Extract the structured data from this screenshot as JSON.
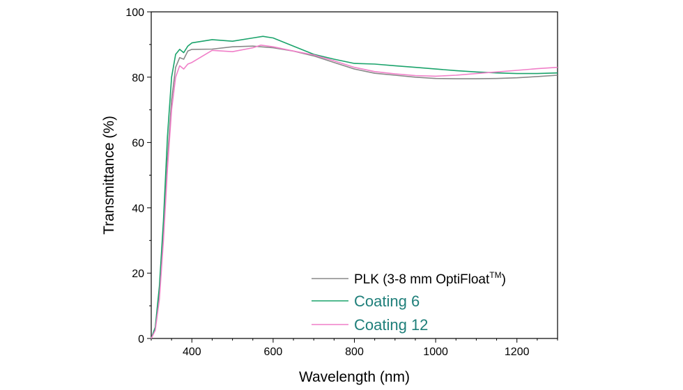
{
  "chart_data": {
    "type": "line",
    "title": "",
    "xlabel": "Wavelength (nm)",
    "ylabel": "Transmittance (%)",
    "xlim": [
      300,
      1300
    ],
    "ylim": [
      0,
      100
    ],
    "xticks": [
      400,
      600,
      800,
      1000,
      1200
    ],
    "yticks": [
      0,
      20,
      40,
      60,
      80,
      100
    ],
    "grid": false,
    "legend_position": "bottom-right",
    "series": [
      {
        "name": "PLK (3-8 mm OptiFloat",
        "name_superscript": "TM",
        "name_suffix": ")",
        "color": "#888888",
        "label_color": "#000000",
        "points": [
          [
            300,
            0
          ],
          [
            310,
            3
          ],
          [
            320,
            14
          ],
          [
            330,
            32
          ],
          [
            340,
            55
          ],
          [
            350,
            73
          ],
          [
            360,
            83
          ],
          [
            370,
            86
          ],
          [
            380,
            85.5
          ],
          [
            390,
            88
          ],
          [
            400,
            88.5
          ],
          [
            450,
            88.6
          ],
          [
            500,
            89.3
          ],
          [
            550,
            89.5
          ],
          [
            600,
            89
          ],
          [
            650,
            88
          ],
          [
            700,
            86.5
          ],
          [
            750,
            84.5
          ],
          [
            800,
            82.5
          ],
          [
            850,
            81.2
          ],
          [
            900,
            80.6
          ],
          [
            950,
            80
          ],
          [
            1000,
            79.6
          ],
          [
            1050,
            79.5
          ],
          [
            1100,
            79.5
          ],
          [
            1150,
            79.6
          ],
          [
            1200,
            79.8
          ],
          [
            1250,
            80.2
          ],
          [
            1300,
            80.6
          ]
        ]
      },
      {
        "name": "Coating 6",
        "color": "#1aa36b",
        "label_color": "#1f7f7a",
        "points": [
          [
            300,
            0
          ],
          [
            310,
            3.5
          ],
          [
            320,
            16
          ],
          [
            330,
            36
          ],
          [
            340,
            62
          ],
          [
            350,
            80
          ],
          [
            360,
            87
          ],
          [
            370,
            88.5
          ],
          [
            380,
            87.5
          ],
          [
            390,
            89.5
          ],
          [
            400,
            90.5
          ],
          [
            450,
            91.5
          ],
          [
            500,
            91
          ],
          [
            550,
            92
          ],
          [
            575,
            92.5
          ],
          [
            600,
            92
          ],
          [
            650,
            89.5
          ],
          [
            700,
            87
          ],
          [
            750,
            85.5
          ],
          [
            800,
            84.2
          ],
          [
            850,
            84
          ],
          [
            900,
            83.5
          ],
          [
            950,
            83
          ],
          [
            1000,
            82.5
          ],
          [
            1050,
            82
          ],
          [
            1100,
            81.6
          ],
          [
            1150,
            81.3
          ],
          [
            1200,
            81.1
          ],
          [
            1250,
            81.1
          ],
          [
            1300,
            81.3
          ]
        ]
      },
      {
        "name": "Coating 12",
        "color": "#f07fc8",
        "label_color": "#1f7f7a",
        "points": [
          [
            300,
            0
          ],
          [
            310,
            2.5
          ],
          [
            320,
            12
          ],
          [
            330,
            30
          ],
          [
            340,
            52
          ],
          [
            350,
            70
          ],
          [
            360,
            80
          ],
          [
            370,
            83.5
          ],
          [
            380,
            82.5
          ],
          [
            390,
            84
          ],
          [
            400,
            84.5
          ],
          [
            450,
            88.2
          ],
          [
            500,
            87.8
          ],
          [
            550,
            89
          ],
          [
            570,
            89.8
          ],
          [
            600,
            89.3
          ],
          [
            650,
            88
          ],
          [
            700,
            86.8
          ],
          [
            750,
            85
          ],
          [
            800,
            83
          ],
          [
            850,
            81.7
          ],
          [
            900,
            81
          ],
          [
            950,
            80.5
          ],
          [
            1000,
            80.3
          ],
          [
            1050,
            80.6
          ],
          [
            1100,
            81.1
          ],
          [
            1150,
            81.6
          ],
          [
            1200,
            82.1
          ],
          [
            1250,
            82.6
          ],
          [
            1300,
            83
          ]
        ]
      }
    ]
  }
}
